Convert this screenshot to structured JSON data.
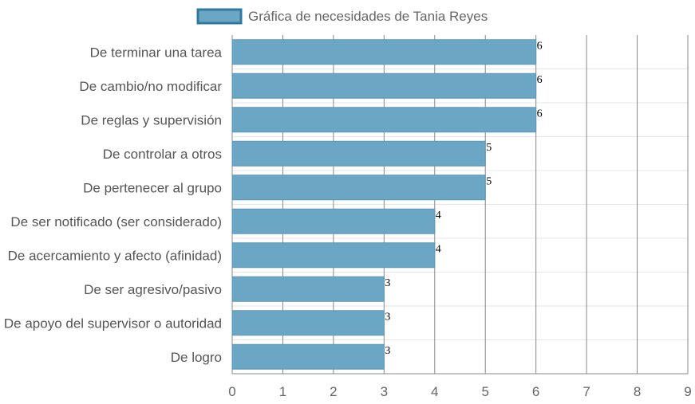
{
  "colors": {
    "bar_fill": "#6ba6c4",
    "bar_stroke": "#5b97b7",
    "legend_border": "#2f7aa0",
    "grid": "#888888",
    "grid_light": "#e6e6e6"
  },
  "chart_data": {
    "type": "bar",
    "orientation": "horizontal",
    "legend": {
      "position": "top-center",
      "label": "Gráfica de necesidades de Tania Reyes"
    },
    "categories": [
      "De terminar una tarea",
      "De cambio/no modificar",
      "De reglas y supervisión",
      "De controlar a otros",
      "De pertenecer al grupo",
      "De ser notificado (ser considerado)",
      "De acercamiento y afecto (afinidad)",
      "De ser agresivo/pasivo",
      "De apoyo del supervisor o autoridad",
      "De logro"
    ],
    "series": [
      {
        "name": "Gráfica de necesidades de Tania Reyes",
        "values": [
          6,
          6,
          6,
          5,
          5,
          4,
          4,
          3,
          3,
          3
        ]
      }
    ],
    "xlim": [
      0,
      9
    ],
    "x_ticks": [
      "0",
      "1",
      "2",
      "3",
      "4",
      "5",
      "6",
      "7",
      "8",
      "9"
    ],
    "grid": true,
    "data_labels": true
  }
}
